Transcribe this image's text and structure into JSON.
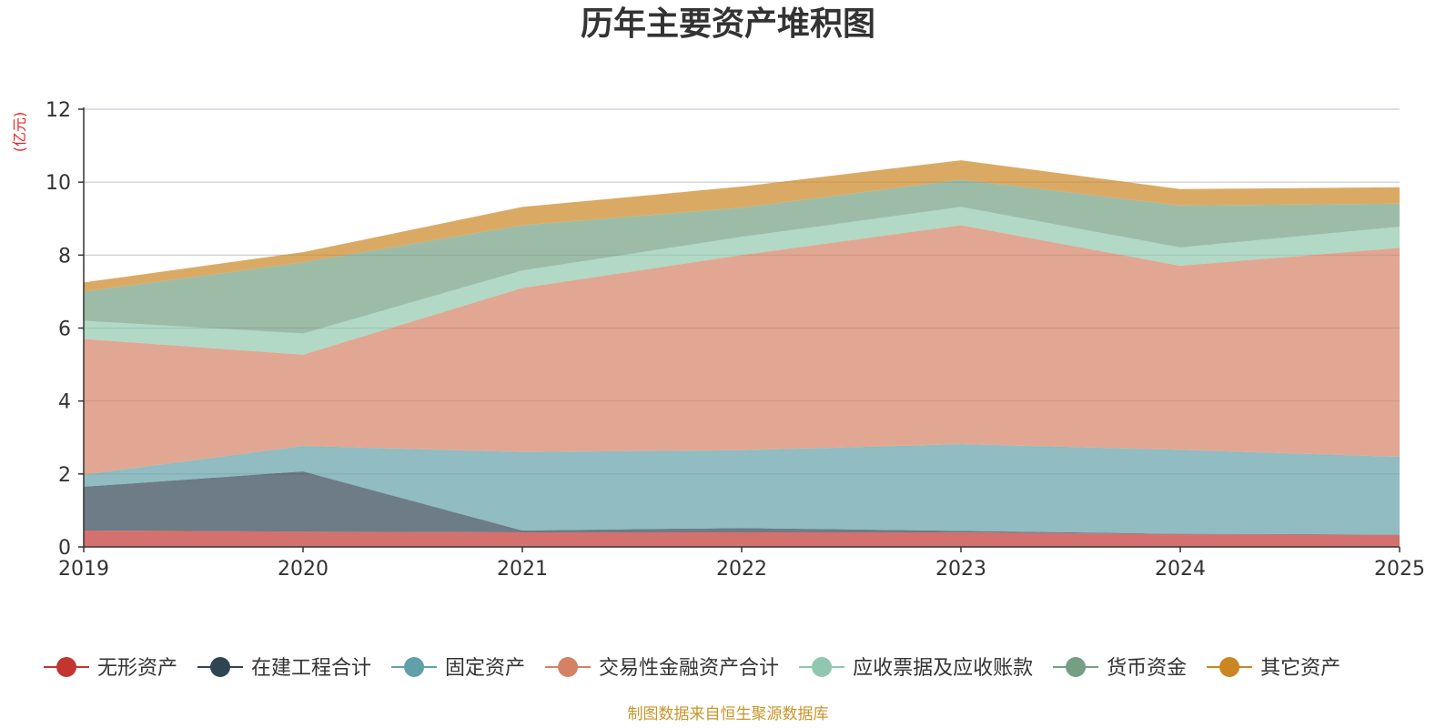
{
  "chart_data": {
    "type": "area",
    "stacked": true,
    "title": "历年主要资产堆积图",
    "ylabel": "(亿元)",
    "xlabel": "",
    "ylim": [
      0,
      12
    ],
    "yticks": [
      0,
      2,
      4,
      6,
      8,
      10,
      12
    ],
    "categories": [
      "2019",
      "2020",
      "2021",
      "2022",
      "2023",
      "2024",
      "2025"
    ],
    "grid": true,
    "legend_position": "bottom",
    "series": [
      {
        "name": "无形资产",
        "color": "#c23531",
        "values": [
          0.45,
          0.42,
          0.4,
          0.4,
          0.4,
          0.35,
          0.33
        ]
      },
      {
        "name": "在建工程合计",
        "color": "#2f4554",
        "values": [
          1.2,
          1.65,
          0.05,
          0.12,
          0.04,
          0.01,
          0.01
        ]
      },
      {
        "name": "固定资产",
        "color": "#61a0a8",
        "values": [
          0.33,
          0.7,
          2.15,
          2.13,
          2.38,
          2.3,
          2.13
        ]
      },
      {
        "name": "交易性金融资产合计",
        "color": "#d48265",
        "values": [
          3.72,
          2.5,
          4.5,
          5.35,
          6.0,
          5.05,
          5.73
        ]
      },
      {
        "name": "应收票据及应收账款",
        "color": "#91c7ae",
        "values": [
          0.5,
          0.58,
          0.48,
          0.5,
          0.5,
          0.5,
          0.58
        ]
      },
      {
        "name": "货币资金",
        "color": "#749f83",
        "values": [
          0.8,
          1.95,
          1.24,
          0.8,
          0.75,
          1.15,
          0.63
        ]
      },
      {
        "name": "其它资产",
        "color": "#ca8622",
        "values": [
          0.25,
          0.28,
          0.5,
          0.58,
          0.53,
          0.45,
          0.45
        ]
      }
    ],
    "source": "制图数据来自恒生聚源数据库"
  }
}
